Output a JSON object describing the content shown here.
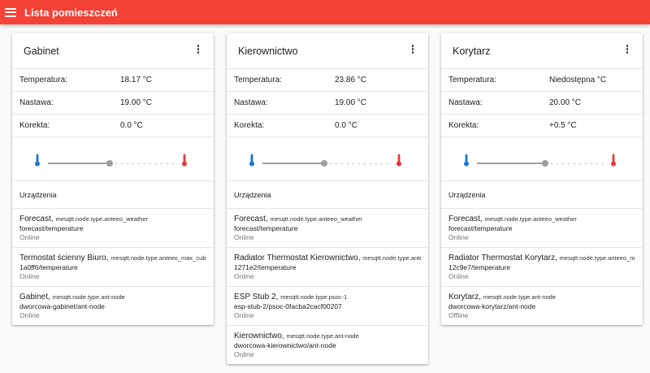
{
  "app": {
    "title": "Lista pomieszczeń"
  },
  "labels": {
    "temperature": "Temperatura:",
    "setpoint": "Nastawa:",
    "correction": "Korekta:",
    "devices": "Urządzenia"
  },
  "rooms": [
    {
      "name": "Gabinet",
      "temperature": "18.17 °C",
      "setpoint": "19.00 °C",
      "correction": "0.0 °C",
      "slider_fraction": 0.49,
      "devices": [
        {
          "name": "Forecast,",
          "type": "mesqtt.node.type.anteeo_weather",
          "path": "forecast/temperature",
          "status": "Online"
        },
        {
          "name": "Termostat ścienny Biuro,",
          "type": "mesqtt.node.type.anteeo_max_cube",
          "path": "1a0ff6/temperature",
          "status": "Online"
        },
        {
          "name": "Gabinet,",
          "type": "mesqtt.node.type.ant-node",
          "path": "dworcowa-gabinet/ant-node",
          "status": "Online"
        }
      ]
    },
    {
      "name": "Kierownictwo",
      "temperature": "23.86 °C",
      "setpoint": "19.00 °C",
      "correction": "0.0 °C",
      "slider_fraction": 0.49,
      "devices": [
        {
          "name": "Forecast,",
          "type": "mesqtt.node.type.anteeo_weather",
          "path": "forecast/temperature",
          "status": "Online"
        },
        {
          "name": "Radiator Thermostat Kierownictwo,",
          "type": "mesqtt.node.type.anteeo_ma",
          "path": "1271e2/temperature",
          "status": "Online"
        },
        {
          "name": "ESP Stub 2,",
          "type": "mesqtt.node.type.psoc-1",
          "path": "esp-stub-2/psoc-0facba2cacf00207",
          "status": "Online"
        },
        {
          "name": "Kierownictwo,",
          "type": "mesqtt.node.type.ant-node",
          "path": "dworcowa-kierownictwo/ant-node",
          "status": "Online"
        }
      ]
    },
    {
      "name": "Korytarz",
      "temperature": "Niedostępna °C",
      "setpoint": "20.00 °C",
      "correction": "+0.5 °C",
      "slider_fraction": 0.54,
      "devices": [
        {
          "name": "Forecast,",
          "type": "mesqtt.node.type.anteeo_weather",
          "path": "forecast/temperature",
          "status": "Online"
        },
        {
          "name": "Radiator Thermostat Korytarz,",
          "type": "mesqtt.node.type.anteeo_max_cub",
          "path": "12c9e7/temperature",
          "status": "Online"
        },
        {
          "name": "Korytarz,",
          "type": "mesqtt.node.type.ant-node",
          "path": "dworcowa-korytarz/ant-node",
          "status": "Offline"
        }
      ]
    }
  ],
  "icons": {
    "menu": "menu-icon",
    "more": "more-vert-icon",
    "cold": "thermometer-cold-icon",
    "hot": "thermometer-hot-icon"
  },
  "colors": {
    "appbar": "#f44336",
    "cold": "#1976d2",
    "hot": "#e53935",
    "slider": "#9e9e9e"
  }
}
